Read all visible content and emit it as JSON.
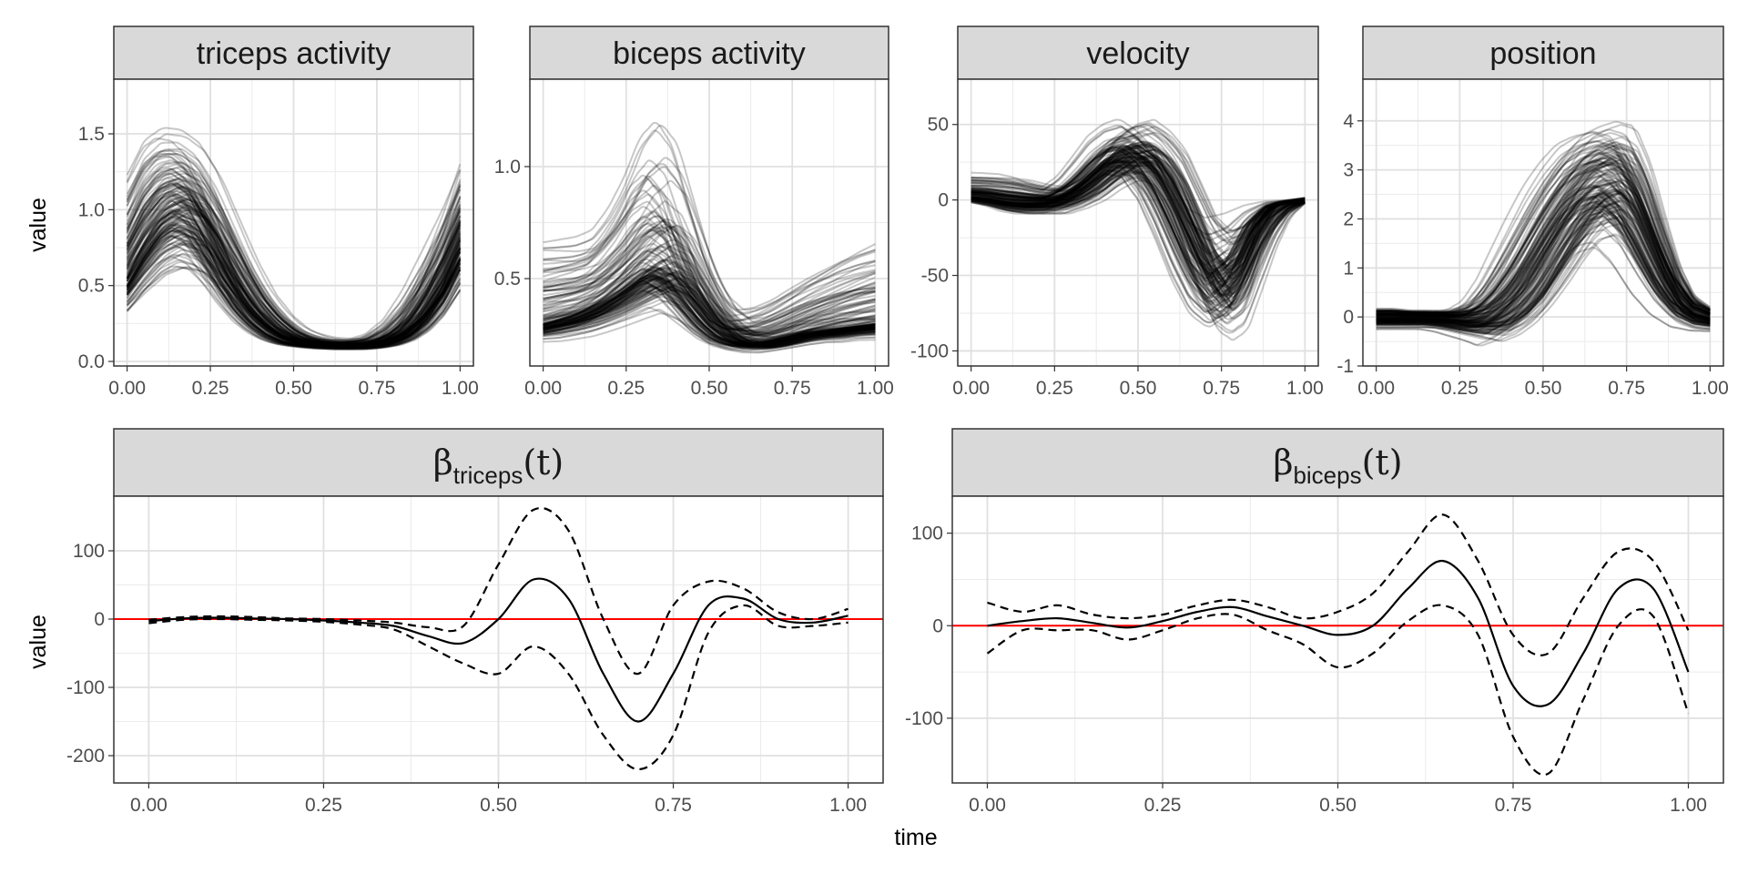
{
  "figure": {
    "y_axis_title": "value",
    "x_axis_title": "time"
  },
  "chart_data": [
    {
      "type": "line",
      "title": "triceps activity",
      "description_of_marks": "about 150 overlaid semi-transparent curves",
      "x": [
        0,
        0.05,
        0.1,
        0.15,
        0.2,
        0.25,
        0.3,
        0.35,
        0.4,
        0.45,
        0.5,
        0.55,
        0.6,
        0.65,
        0.7,
        0.75,
        0.8,
        0.85,
        0.9,
        0.95,
        1.0
      ],
      "series": [
        {
          "role": "typical",
          "values": [
            0.55,
            0.75,
            0.92,
            1.0,
            0.95,
            0.78,
            0.58,
            0.4,
            0.27,
            0.18,
            0.13,
            0.11,
            0.1,
            0.1,
            0.1,
            0.11,
            0.14,
            0.2,
            0.32,
            0.5,
            0.75
          ]
        },
        {
          "role": "upper_envelope",
          "values": [
            1.45,
            1.7,
            1.75,
            1.7,
            1.6,
            1.4,
            1.1,
            0.8,
            0.55,
            0.38,
            0.26,
            0.2,
            0.17,
            0.16,
            0.16,
            0.2,
            0.32,
            0.55,
            0.85,
            1.15,
            1.48
          ]
        },
        {
          "role": "lower_envelope",
          "values": [
            0.2,
            0.28,
            0.35,
            0.38,
            0.36,
            0.3,
            0.22,
            0.16,
            0.12,
            0.1,
            0.09,
            0.08,
            0.07,
            0.07,
            0.07,
            0.08,
            0.09,
            0.11,
            0.14,
            0.2,
            0.3
          ]
        }
      ],
      "x_ticks": [
        "0.00",
        "0.25",
        "0.50",
        "0.75",
        "1.00"
      ],
      "y_ticks": [
        "0.0",
        "0.5",
        "1.0",
        "1.5"
      ],
      "y_tick_values": [
        0,
        0.5,
        1.0,
        1.5
      ],
      "xlim": [
        -0.04,
        1.04
      ],
      "ylim": [
        -0.03,
        1.86
      ],
      "grid": true
    },
    {
      "type": "line",
      "title": "biceps activity",
      "description_of_marks": "about 150 overlaid semi-transparent curves",
      "x": [
        0,
        0.05,
        0.1,
        0.15,
        0.2,
        0.25,
        0.3,
        0.35,
        0.4,
        0.45,
        0.5,
        0.55,
        0.6,
        0.65,
        0.7,
        0.75,
        0.8,
        0.85,
        0.9,
        0.95,
        1.0
      ],
      "series": [
        {
          "role": "typical",
          "values": [
            0.3,
            0.32,
            0.34,
            0.37,
            0.41,
            0.46,
            0.52,
            0.56,
            0.52,
            0.42,
            0.32,
            0.25,
            0.22,
            0.21,
            0.22,
            0.24,
            0.26,
            0.27,
            0.28,
            0.29,
            0.3
          ]
        },
        {
          "role": "upper_envelope",
          "values": [
            0.78,
            0.78,
            0.78,
            0.8,
            0.9,
            1.05,
            1.25,
            1.33,
            1.2,
            0.9,
            0.62,
            0.45,
            0.38,
            0.4,
            0.44,
            0.5,
            0.56,
            0.62,
            0.68,
            0.73,
            0.77
          ]
        },
        {
          "role": "lower_envelope",
          "values": [
            0.2,
            0.2,
            0.21,
            0.22,
            0.24,
            0.26,
            0.28,
            0.3,
            0.27,
            0.23,
            0.19,
            0.17,
            0.16,
            0.16,
            0.17,
            0.18,
            0.19,
            0.2,
            0.2,
            0.21,
            0.21
          ]
        }
      ],
      "x_ticks": [
        "0.00",
        "0.25",
        "0.50",
        "0.75",
        "1.00"
      ],
      "y_ticks": [
        "0.5",
        "1.0"
      ],
      "y_tick_values": [
        0.5,
        1.0
      ],
      "xlim": [
        -0.04,
        1.04
      ],
      "ylim": [
        0.11,
        1.39
      ],
      "grid": true
    },
    {
      "type": "line",
      "title": "velocity",
      "description_of_marks": "about 150 overlaid semi-transparent curves",
      "x": [
        0,
        0.05,
        0.1,
        0.15,
        0.2,
        0.25,
        0.3,
        0.35,
        0.4,
        0.45,
        0.5,
        0.55,
        0.6,
        0.65,
        0.7,
        0.75,
        0.8,
        0.85,
        0.9,
        0.95,
        1.0
      ],
      "series": [
        {
          "role": "typical",
          "values": [
            2,
            1,
            -1,
            -2,
            -2,
            -1,
            3,
            10,
            20,
            28,
            30,
            22,
            5,
            -20,
            -45,
            -60,
            -48,
            -20,
            -5,
            -1,
            0
          ]
        },
        {
          "role": "upper_envelope",
          "values": [
            22,
            22,
            22,
            20,
            15,
            12,
            20,
            35,
            50,
            58,
            62,
            55,
            45,
            25,
            5,
            0,
            0,
            0,
            0,
            0,
            2
          ]
        },
        {
          "role": "lower_envelope",
          "values": [
            -3,
            -6,
            -10,
            -12,
            -12,
            -12,
            -8,
            -3,
            5,
            10,
            5,
            -15,
            -45,
            -75,
            -95,
            -100,
            -95,
            -70,
            -40,
            -15,
            -3
          ]
        }
      ],
      "x_ticks": [
        "0.00",
        "0.25",
        "0.50",
        "0.75",
        "1.00"
      ],
      "y_ticks": [
        "50",
        "0",
        "-50",
        "-100"
      ],
      "y_tick_values": [
        50,
        0,
        -50,
        -100
      ],
      "xlim": [
        -0.04,
        1.04
      ],
      "ylim": [
        -110,
        80
      ],
      "grid": true
    },
    {
      "type": "line",
      "title": "position",
      "description_of_marks": "about 150 overlaid semi-transparent curves",
      "x": [
        0,
        0.05,
        0.1,
        0.15,
        0.2,
        0.25,
        0.3,
        0.35,
        0.4,
        0.45,
        0.5,
        0.55,
        0.6,
        0.65,
        0.7,
        0.75,
        0.8,
        0.85,
        0.9,
        0.95,
        1.0
      ],
      "series": [
        {
          "role": "typical",
          "values": [
            0,
            0,
            0,
            0,
            -0.02,
            -0.05,
            -0.05,
            0.05,
            0.3,
            0.7,
            1.3,
            1.9,
            2.4,
            2.7,
            2.8,
            2.5,
            1.8,
            1.0,
            0.4,
            0.1,
            0
          ]
        },
        {
          "role": "upper_envelope",
          "values": [
            0.25,
            0.25,
            0.2,
            0.2,
            0.2,
            0.3,
            0.6,
            1.3,
            2.2,
            3.0,
            3.6,
            4.0,
            4.3,
            4.4,
            4.5,
            4.5,
            3.8,
            2.6,
            1.4,
            0.6,
            0.3
          ]
        },
        {
          "role": "lower_envelope",
          "values": [
            -0.3,
            -0.3,
            -0.3,
            -0.3,
            -0.35,
            -0.45,
            -0.55,
            -0.7,
            -0.6,
            -0.4,
            -0.1,
            0.3,
            0.8,
            1.2,
            1.3,
            0.9,
            0.3,
            -0.1,
            -0.3,
            -0.35,
            -0.35
          ]
        }
      ],
      "x_ticks": [
        "0.00",
        "0.25",
        "0.50",
        "0.75",
        "1.00"
      ],
      "y_ticks": [
        "4",
        "3",
        "2",
        "1",
        "0",
        "-1"
      ],
      "y_tick_values": [
        4,
        3,
        2,
        1,
        0,
        -1
      ],
      "xlim": [
        -0.04,
        1.04
      ],
      "ylim": [
        -1.0,
        4.85
      ],
      "grid": true
    },
    {
      "type": "line",
      "title": "β_triceps(t)",
      "title_main": "β",
      "title_sub": "triceps",
      "title_tail": "(t)",
      "x": [
        0,
        0.05,
        0.1,
        0.15,
        0.2,
        0.25,
        0.3,
        0.35,
        0.4,
        0.45,
        0.5,
        0.55,
        0.6,
        0.65,
        0.7,
        0.75,
        0.8,
        0.85,
        0.9,
        0.95,
        1.0
      ],
      "series": [
        {
          "role": "estimate",
          "style": "solid",
          "values": [
            -3,
            1,
            2,
            1,
            0,
            -2,
            -5,
            -10,
            -25,
            -35,
            0,
            58,
            30,
            -80,
            -150,
            -80,
            20,
            30,
            0,
            -5,
            5
          ]
        },
        {
          "role": "upper",
          "style": "dashed",
          "values": [
            -1,
            3,
            4,
            3,
            1,
            0,
            -2,
            -5,
            -12,
            -10,
            80,
            160,
            130,
            0,
            -80,
            20,
            55,
            45,
            10,
            0,
            15
          ]
        },
        {
          "role": "lower",
          "style": "dashed",
          "values": [
            -6,
            -1,
            0,
            -1,
            -2,
            -4,
            -8,
            -15,
            -40,
            -65,
            -80,
            -40,
            -80,
            -170,
            -220,
            -170,
            -20,
            20,
            -10,
            -10,
            -5
          ]
        }
      ],
      "reference_line": {
        "y": 0,
        "color": "#ff0000"
      },
      "x_ticks": [
        "0.00",
        "0.25",
        "0.50",
        "0.75",
        "1.00"
      ],
      "y_ticks": [
        "100",
        "0",
        "-100",
        "-200"
      ],
      "y_tick_values": [
        100,
        0,
        -100,
        -200
      ],
      "xlim": [
        -0.05,
        1.05
      ],
      "ylim": [
        -240,
        180
      ],
      "grid": true
    },
    {
      "type": "line",
      "title": "β_biceps(t)",
      "title_main": "β",
      "title_sub": "biceps",
      "title_tail": "(t)",
      "x": [
        0,
        0.05,
        0.1,
        0.15,
        0.2,
        0.25,
        0.3,
        0.35,
        0.4,
        0.45,
        0.5,
        0.55,
        0.6,
        0.65,
        0.7,
        0.75,
        0.8,
        0.85,
        0.9,
        0.95,
        1.0
      ],
      "series": [
        {
          "role": "estimate",
          "style": "solid",
          "values": [
            0,
            5,
            8,
            3,
            -2,
            5,
            15,
            20,
            10,
            0,
            -10,
            0,
            40,
            70,
            30,
            -65,
            -85,
            -30,
            40,
            40,
            -50
          ]
        },
        {
          "role": "upper",
          "style": "dashed",
          "values": [
            25,
            15,
            22,
            12,
            8,
            12,
            22,
            28,
            20,
            8,
            15,
            35,
            80,
            120,
            70,
            -10,
            -30,
            30,
            80,
            70,
            -5
          ]
        },
        {
          "role": "lower",
          "style": "dashed",
          "values": [
            -30,
            -5,
            -5,
            -5,
            -15,
            -5,
            8,
            12,
            -5,
            -20,
            -45,
            -30,
            5,
            22,
            -10,
            -120,
            -160,
            -80,
            0,
            10,
            -95
          ]
        }
      ],
      "reference_line": {
        "y": 0,
        "color": "#ff0000"
      },
      "x_ticks": [
        "0.00",
        "0.25",
        "0.50",
        "0.75",
        "1.00"
      ],
      "y_ticks": [
        "100",
        "0",
        "-100"
      ],
      "y_tick_values": [
        100,
        0,
        -100
      ],
      "xlim": [
        -0.05,
        1.05
      ],
      "ylim": [
        -170,
        140
      ],
      "grid": true
    }
  ]
}
